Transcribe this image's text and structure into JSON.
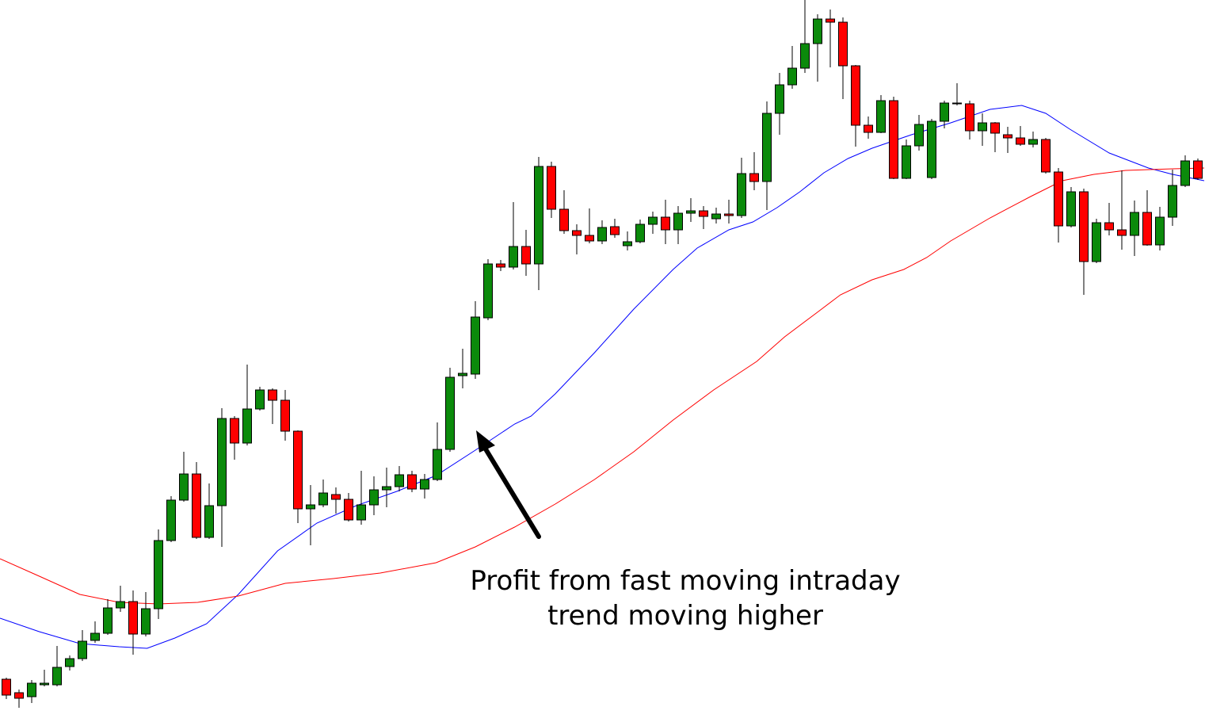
{
  "chart_data": {
    "type": "candlestick",
    "annotation": [
      "Profit from fast moving intraday",
      "trend moving higher"
    ],
    "up_color": "#0b8a0b",
    "down_color": "#ff0000",
    "xlim": [
      -0.5,
      94.5
    ],
    "ylim": [
      0,
      916
    ],
    "candles": [
      {
        "o": 59,
        "h": 61,
        "l": 34,
        "c": 39
      },
      {
        "o": 42,
        "h": 46,
        "l": 23,
        "c": 35
      },
      {
        "o": 37,
        "h": 58,
        "l": 29,
        "c": 54
      },
      {
        "o": 52,
        "h": 71,
        "l": 50,
        "c": 54
      },
      {
        "o": 52,
        "h": 101,
        "l": 50,
        "c": 74
      },
      {
        "o": 75,
        "h": 89,
        "l": 70,
        "c": 85
      },
      {
        "o": 85,
        "h": 121,
        "l": 82,
        "c": 107
      },
      {
        "o": 108,
        "h": 132,
        "l": 105,
        "c": 117
      },
      {
        "o": 117,
        "h": 160,
        "l": 115,
        "c": 149
      },
      {
        "o": 149,
        "h": 177,
        "l": 144,
        "c": 157
      },
      {
        "o": 157,
        "h": 171,
        "l": 90,
        "c": 116
      },
      {
        "o": 116,
        "h": 169,
        "l": 113,
        "c": 148
      },
      {
        "o": 148,
        "h": 248,
        "l": 135,
        "c": 234
      },
      {
        "o": 234,
        "h": 290,
        "l": 232,
        "c": 285
      },
      {
        "o": 285,
        "h": 346,
        "l": 283,
        "c": 318
      },
      {
        "o": 318,
        "h": 333,
        "l": 236,
        "c": 238
      },
      {
        "o": 238,
        "h": 306,
        "l": 236,
        "c": 278
      },
      {
        "o": 278,
        "h": 401,
        "l": 226,
        "c": 388
      },
      {
        "o": 388,
        "h": 391,
        "l": 336,
        "c": 357
      },
      {
        "o": 357,
        "h": 456,
        "l": 354,
        "c": 400
      },
      {
        "o": 400,
        "h": 428,
        "l": 398,
        "c": 424
      },
      {
        "o": 424,
        "h": 426,
        "l": 381,
        "c": 411
      },
      {
        "o": 411,
        "h": 424,
        "l": 360,
        "c": 372
      },
      {
        "o": 372,
        "h": 373,
        "l": 256,
        "c": 274
      },
      {
        "o": 274,
        "h": 304,
        "l": 228,
        "c": 279
      },
      {
        "o": 279,
        "h": 311,
        "l": 276,
        "c": 294
      },
      {
        "o": 292,
        "h": 301,
        "l": 268,
        "c": 286
      },
      {
        "o": 286,
        "h": 294,
        "l": 258,
        "c": 260
      },
      {
        "o": 260,
        "h": 322,
        "l": 254,
        "c": 279
      },
      {
        "o": 279,
        "h": 315,
        "l": 266,
        "c": 298
      },
      {
        "o": 298,
        "h": 326,
        "l": 276,
        "c": 302
      },
      {
        "o": 302,
        "h": 328,
        "l": 296,
        "c": 317
      },
      {
        "o": 317,
        "h": 322,
        "l": 295,
        "c": 299
      },
      {
        "o": 299,
        "h": 318,
        "l": 287,
        "c": 311
      },
      {
        "o": 311,
        "h": 383,
        "l": 309,
        "c": 349
      },
      {
        "o": 349,
        "h": 452,
        "l": 346,
        "c": 440
      },
      {
        "o": 442,
        "h": 476,
        "l": 426,
        "c": 445
      },
      {
        "o": 444,
        "h": 536,
        "l": 438,
        "c": 516
      },
      {
        "o": 515,
        "h": 589,
        "l": 512,
        "c": 583
      },
      {
        "o": 583,
        "h": 588,
        "l": 574,
        "c": 579
      },
      {
        "o": 579,
        "h": 661,
        "l": 576,
        "c": 605
      },
      {
        "o": 605,
        "h": 626,
        "l": 568,
        "c": 583
      },
      {
        "o": 583,
        "h": 718,
        "l": 550,
        "c": 706
      },
      {
        "o": 706,
        "h": 712,
        "l": 641,
        "c": 652
      },
      {
        "o": 652,
        "h": 676,
        "l": 621,
        "c": 625
      },
      {
        "o": 625,
        "h": 633,
        "l": 595,
        "c": 619
      },
      {
        "o": 619,
        "h": 653,
        "l": 609,
        "c": 612
      },
      {
        "o": 612,
        "h": 638,
        "l": 608,
        "c": 629
      },
      {
        "o": 630,
        "h": 640,
        "l": 616,
        "c": 620
      },
      {
        "o": 606,
        "h": 624,
        "l": 600,
        "c": 611
      },
      {
        "o": 611,
        "h": 639,
        "l": 609,
        "c": 633
      },
      {
        "o": 633,
        "h": 649,
        "l": 621,
        "c": 642
      },
      {
        "o": 642,
        "h": 664,
        "l": 608,
        "c": 626
      },
      {
        "o": 626,
        "h": 656,
        "l": 608,
        "c": 647
      },
      {
        "o": 647,
        "h": 666,
        "l": 636,
        "c": 650
      },
      {
        "o": 650,
        "h": 656,
        "l": 627,
        "c": 643
      },
      {
        "o": 640,
        "h": 654,
        "l": 634,
        "c": 646
      },
      {
        "o": 646,
        "h": 664,
        "l": 634,
        "c": 644
      },
      {
        "o": 644,
        "h": 717,
        "l": 641,
        "c": 697
      },
      {
        "o": 697,
        "h": 724,
        "l": 676,
        "c": 687
      },
      {
        "o": 687,
        "h": 788,
        "l": 651,
        "c": 773
      },
      {
        "o": 773,
        "h": 824,
        "l": 746,
        "c": 809
      },
      {
        "o": 809,
        "h": 858,
        "l": 804,
        "c": 830
      },
      {
        "o": 830,
        "h": 916,
        "l": 824,
        "c": 861
      },
      {
        "o": 861,
        "h": 898,
        "l": 813,
        "c": 892
      },
      {
        "o": 892,
        "h": 904,
        "l": 831,
        "c": 888
      },
      {
        "o": 888,
        "h": 894,
        "l": 791,
        "c": 833
      },
      {
        "o": 833,
        "h": 834,
        "l": 731,
        "c": 758
      },
      {
        "o": 758,
        "h": 769,
        "l": 741,
        "c": 749
      },
      {
        "o": 749,
        "h": 796,
        "l": 748,
        "c": 789
      },
      {
        "o": 789,
        "h": 794,
        "l": 690,
        "c": 691
      },
      {
        "o": 691,
        "h": 740,
        "l": 690,
        "c": 732
      },
      {
        "o": 732,
        "h": 771,
        "l": 726,
        "c": 759
      },
      {
        "o": 692,
        "h": 766,
        "l": 690,
        "c": 763
      },
      {
        "o": 763,
        "h": 789,
        "l": 754,
        "c": 786
      },
      {
        "o": 786,
        "h": 811,
        "l": 783,
        "c": 786
      },
      {
        "o": 785,
        "h": 789,
        "l": 740,
        "c": 751
      },
      {
        "o": 751,
        "h": 773,
        "l": 732,
        "c": 761
      },
      {
        "o": 761,
        "h": 762,
        "l": 724,
        "c": 748
      },
      {
        "o": 746,
        "h": 756,
        "l": 723,
        "c": 742
      },
      {
        "o": 742,
        "h": 757,
        "l": 732,
        "c": 734
      },
      {
        "o": 734,
        "h": 750,
        "l": 730,
        "c": 740
      },
      {
        "o": 740,
        "h": 742,
        "l": 697,
        "c": 699
      },
      {
        "o": 699,
        "h": 704,
        "l": 610,
        "c": 631
      },
      {
        "o": 631,
        "h": 680,
        "l": 629,
        "c": 674
      },
      {
        "o": 674,
        "h": 678,
        "l": 544,
        "c": 586
      },
      {
        "o": 586,
        "h": 640,
        "l": 584,
        "c": 635
      },
      {
        "o": 635,
        "h": 660,
        "l": 619,
        "c": 626
      },
      {
        "o": 626,
        "h": 701,
        "l": 601,
        "c": 619
      },
      {
        "o": 619,
        "h": 663,
        "l": 593,
        "c": 648
      },
      {
        "o": 648,
        "h": 676,
        "l": 606,
        "c": 607
      },
      {
        "o": 607,
        "h": 655,
        "l": 600,
        "c": 642
      },
      {
        "o": 642,
        "h": 702,
        "l": 631,
        "c": 682
      },
      {
        "o": 682,
        "h": 720,
        "l": 680,
        "c": 713
      },
      {
        "o": 713,
        "h": 716,
        "l": 689,
        "c": 691
      }
    ],
    "lines": [
      {
        "color": "#0000ff",
        "x": [
          -0.5,
          2.6,
          5.8,
          8.9,
          11.1,
          13.3,
          15.8,
          18.3,
          21.4,
          24.5,
          27.6,
          30.8,
          33.9,
          37,
          40.1,
          41.4,
          43.3,
          46.4,
          49.5,
          52.6,
          54.5,
          57,
          58.9,
          60.8,
          62.6,
          64.5,
          66.4,
          68.3,
          71.4,
          74.5,
          77.6,
          80.1,
          82,
          83.9,
          87,
          90.1,
          92,
          94.5
        ],
        "values": [
          136,
          119,
          104,
          100,
          98,
          111,
          129,
          166,
          221,
          256,
          278,
          296,
          316,
          348,
          381,
          391,
          419,
          471,
          526,
          576,
          603,
          626,
          636,
          654,
          674,
          698,
          716,
          729,
          746,
          761,
          778,
          783,
          773,
          753,
          723,
          704,
          696,
          688
        ]
      },
      {
        "color": "#ff0000",
        "x": [
          -0.5,
          2.6,
          5.8,
          8.9,
          12,
          15.1,
          18.3,
          22,
          25.8,
          29.5,
          33.9,
          37,
          40.1,
          43.3,
          46.4,
          49.5,
          52.6,
          55.8,
          59.2,
          61.4,
          63.9,
          65.8,
          68.3,
          70.8,
          72.6,
          74.5,
          77.6,
          80.8,
          83.3,
          85.8,
          88.3,
          92,
          94.5
        ],
        "values": [
          211,
          189,
          166,
          156,
          154,
          156,
          164,
          180,
          186,
          193,
          206,
          226,
          251,
          280,
          311,
          346,
          386,
          424,
          460,
          491,
          521,
          544,
          563,
          576,
          591,
          612,
          641,
          668,
          688,
          696,
          701,
          703,
          704
        ]
      }
    ]
  }
}
